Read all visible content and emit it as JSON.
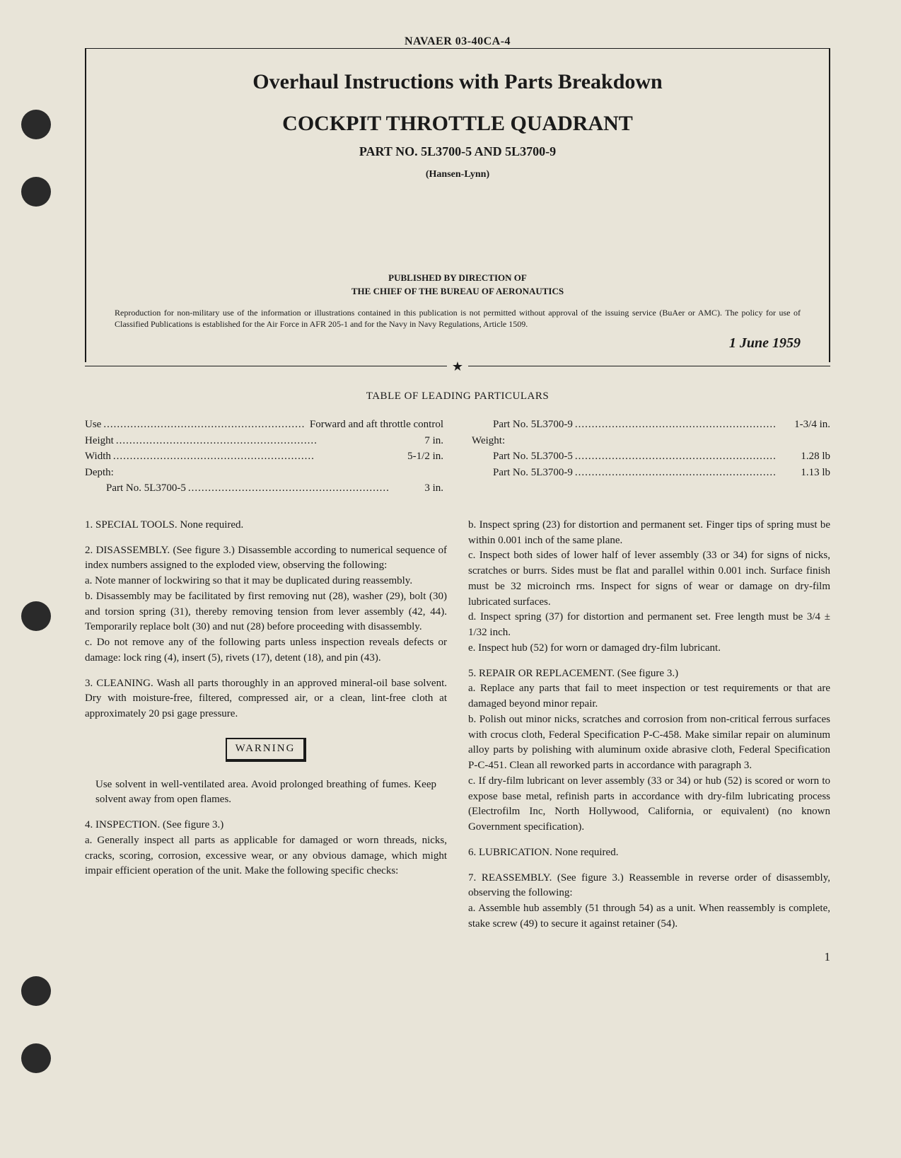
{
  "header": {
    "pub_number": "NAVAER 03-40CA-4",
    "title": "Overhaul Instructions with Parts Breakdown",
    "subtitle": "COCKPIT THROTTLE QUADRANT",
    "part_no": "PART NO. 5L3700-5 AND 5L3700-9",
    "manufacturer": "(Hansen-Lynn)",
    "published_by": "PUBLISHED BY DIRECTION OF",
    "published_by2": "THE CHIEF OF THE BUREAU OF AERONAUTICS",
    "reproduction_notice": "Reproduction for non-military use of the information or illustrations contained in this publication is not permitted without approval of the issuing service (BuAer or AMC). The policy for use of Classified Publications is established for the Air Force in AFR 205-1 and for the Navy in Navy Regulations, Article 1509.",
    "date": "1 June 1959"
  },
  "table_title": "TABLE OF LEADING PARTICULARS",
  "particulars": {
    "left": [
      {
        "label": "Use",
        "value": "Forward and aft throttle control",
        "indent": false
      },
      {
        "label": "Height",
        "value": "7 in.",
        "indent": false
      },
      {
        "label": "Width",
        "value": "5-1/2 in.",
        "indent": false
      },
      {
        "label": "Depth:",
        "value": "",
        "indent": false
      },
      {
        "label": "Part No. 5L3700-5",
        "value": "3 in.",
        "indent": true
      }
    ],
    "right": [
      {
        "label": "Part No. 5L3700-9",
        "value": "1-3/4 in.",
        "indent": true
      },
      {
        "label": "Weight:",
        "value": "",
        "indent": false
      },
      {
        "label": "Part No. 5L3700-5",
        "value": "1.28 lb",
        "indent": true
      },
      {
        "label": "Part No. 5L3700-9",
        "value": "1.13 lb",
        "indent": true
      }
    ]
  },
  "body": {
    "left": {
      "p1": "1. SPECIAL TOOLS. None required.",
      "p2": "2. DISASSEMBLY. (See figure 3.) Disassemble according to numerical sequence of index numbers assigned to the exploded view, observing the following:",
      "p2a": "a. Note manner of lockwiring so that it may be duplicated during reassembly.",
      "p2b": "b. Disassembly may be facilitated by first removing nut (28), washer (29), bolt (30) and torsion spring (31), thereby removing tension from lever assembly (42, 44). Temporarily replace bolt (30) and nut (28) before proceeding with disassembly.",
      "p2c": "c. Do not remove any of the following parts unless inspection reveals defects or damage: lock ring (4), insert (5), rivets (17), detent (18), and pin (43).",
      "p3": "3. CLEANING. Wash all parts thoroughly in an approved mineral-oil base solvent. Dry with moisture-free, filtered, compressed air, or a clean, lint-free cloth at approximately 20 psi gage pressure.",
      "warning_label": "WARNING",
      "warning_text": "Use solvent in well-ventilated area. Avoid prolonged breathing of fumes. Keep solvent away from open flames.",
      "p4": "4. INSPECTION. (See figure 3.)",
      "p4a": "a. Generally inspect all parts as applicable for damaged or worn threads, nicks, cracks, scoring, corrosion, excessive wear, or any obvious damage, which might impair efficient operation of the unit. Make the following specific checks:"
    },
    "right": {
      "p4b": "b. Inspect spring (23) for distortion and permanent set. Finger tips of spring must be within 0.001 inch of the same plane.",
      "p4c": "c. Inspect both sides of lower half of lever assembly (33 or 34) for signs of nicks, scratches or burrs. Sides must be flat and parallel within 0.001 inch. Surface finish must be 32 microinch rms. Inspect for signs of wear or damage on dry-film lubricated surfaces.",
      "p4d": "d. Inspect spring (37) for distortion and permanent set. Free length must be 3/4 ± 1/32 inch.",
      "p4e": "e. Inspect hub (52) for worn or damaged dry-film lubricant.",
      "p5": "5. REPAIR OR REPLACEMENT. (See figure 3.)",
      "p5a": "a. Replace any parts that fail to meet inspection or test requirements or that are damaged beyond minor repair.",
      "p5b": "b. Polish out minor nicks, scratches and corrosion from non-critical ferrous surfaces with crocus cloth, Federal Specification P-C-458. Make similar repair on aluminum alloy parts by polishing with aluminum oxide abrasive cloth, Federal Specification P-C-451. Clean all reworked parts in accordance with paragraph 3.",
      "p5c": "c. If dry-film lubricant on lever assembly (33 or 34) or hub (52) is scored or worn to expose base metal, refinish parts in accordance with dry-film lubricating process (Electrofilm Inc, North Hollywood, California, or equivalent) (no known Government specification).",
      "p6": "6. LUBRICATION. None required.",
      "p7": "7. REASSEMBLY. (See figure 3.) Reassemble in reverse order of disassembly, observing the following:",
      "p7a": "a. Assemble hub assembly (51 through 54) as a unit. When reassembly is complete, stake screw (49) to secure it against retainer (54)."
    }
  },
  "page_number": "1",
  "colors": {
    "background": "#e8e4d8",
    "text": "#1a1a1a",
    "punch_hole": "#2a2a2a"
  }
}
